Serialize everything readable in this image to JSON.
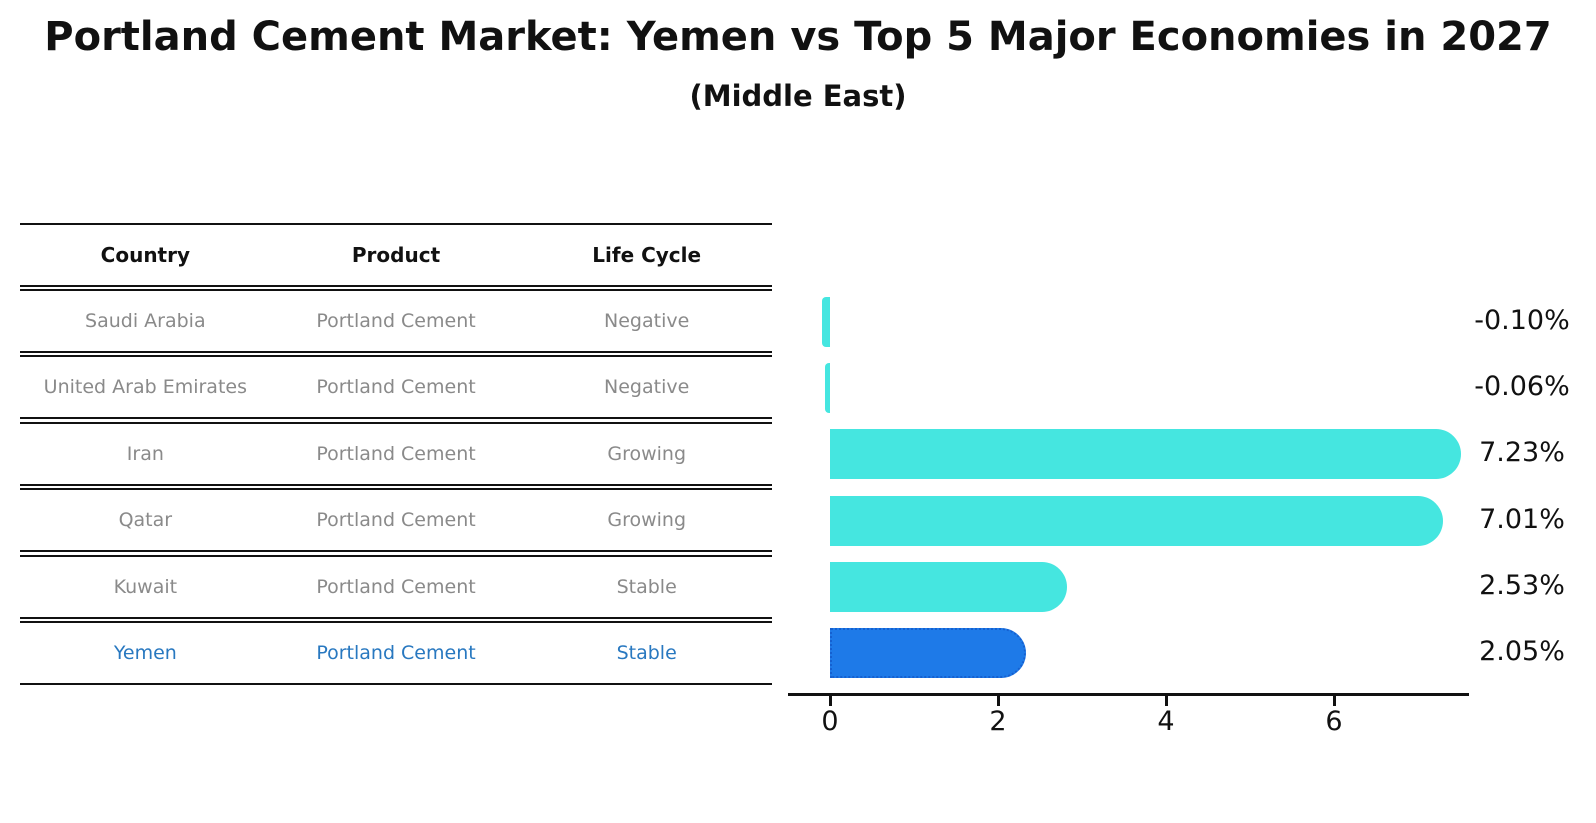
{
  "title": "Portland Cement Market: Yemen vs Top 5 Major Economies in 2027",
  "subtitle": "(Middle East)",
  "table": {
    "headers": [
      "Country",
      "Product",
      "Life Cycle"
    ],
    "rows": [
      {
        "country": "Saudi Arabia",
        "product": "Portland Cement",
        "life_cycle": "Negative"
      },
      {
        "country": "United Arab Emirates",
        "product": "Portland Cement",
        "life_cycle": "Negative"
      },
      {
        "country": "Iran",
        "product": "Portland Cement",
        "life_cycle": "Growing"
      },
      {
        "country": "Qatar",
        "product": "Portland Cement",
        "life_cycle": "Growing"
      },
      {
        "country": "Kuwait",
        "product": "Portland Cement",
        "life_cycle": "Stable"
      },
      {
        "country": "Yemen",
        "product": "Portland Cement",
        "life_cycle": "Stable"
      }
    ],
    "highlighted_row": "Yemen"
  },
  "chart_data": {
    "type": "bar",
    "orientation": "horizontal",
    "categories": [
      "Saudi Arabia",
      "United Arab Emirates",
      "Iran",
      "Qatar",
      "Kuwait",
      "Yemen"
    ],
    "values": [
      -0.1,
      -0.06,
      7.23,
      7.01,
      2.53,
      2.05
    ],
    "value_labels": [
      "-0.10%",
      "-0.06%",
      "7.23%",
      "7.01%",
      "2.53%",
      "2.05%"
    ],
    "x_ticks": [
      "0",
      "2",
      "4",
      "6"
    ],
    "x_tick_values": [
      0,
      2,
      4,
      6
    ],
    "xlim": [
      -0.5,
      7.6
    ],
    "xlabel": "",
    "ylabel": "",
    "grid": false,
    "legend": "none",
    "bar_color": "#45E6E0",
    "highlight_bar_color": "#1E7AE8",
    "highlight_border_color": "#1560D0",
    "highlighted_category": "Yemen"
  },
  "colors": {
    "title_text": "#111111",
    "table_header_text": "#111111",
    "table_body_text": "#8a8a8a",
    "highlight_text": "#2878c0",
    "axis": "#111111"
  }
}
